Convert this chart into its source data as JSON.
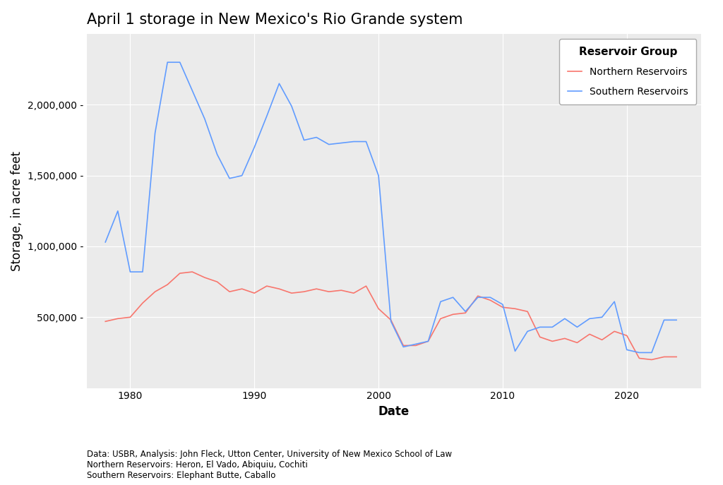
{
  "title": "April 1 storage in New Mexico's Rio Grande system",
  "xlabel": "Date",
  "ylabel": "Storage, in acre feet",
  "caption": "Data: USBR, Analysis: John Fleck, Utton Center, University of New Mexico School of Law\nNorthern Reservoirs: Heron, El Vado, Abiquiu, Cochiti\nSouthern Reservoirs: Elephant Butte, Caballo",
  "legend_title": "Reservoir Group",
  "northern_label": "Northern Reservoirs",
  "southern_label": "Southern Reservoirs",
  "northern_color": "#F8766D",
  "southern_color": "#619CFF",
  "panel_background": "#EBEBEB",
  "plot_background": "#FFFFFF",
  "northern_data": [
    [
      1978,
      470000
    ],
    [
      1979,
      490000
    ],
    [
      1980,
      500000
    ],
    [
      1981,
      600000
    ],
    [
      1982,
      680000
    ],
    [
      1983,
      730000
    ],
    [
      1984,
      810000
    ],
    [
      1985,
      820000
    ],
    [
      1986,
      780000
    ],
    [
      1987,
      750000
    ],
    [
      1988,
      680000
    ],
    [
      1989,
      700000
    ],
    [
      1990,
      670000
    ],
    [
      1991,
      720000
    ],
    [
      1992,
      700000
    ],
    [
      1993,
      670000
    ],
    [
      1994,
      680000
    ],
    [
      1995,
      700000
    ],
    [
      1996,
      680000
    ],
    [
      1997,
      690000
    ],
    [
      1998,
      670000
    ],
    [
      1999,
      720000
    ],
    [
      2000,
      560000
    ],
    [
      2001,
      480000
    ],
    [
      2002,
      300000
    ],
    [
      2003,
      300000
    ],
    [
      2004,
      330000
    ],
    [
      2005,
      490000
    ],
    [
      2006,
      520000
    ],
    [
      2007,
      530000
    ],
    [
      2008,
      650000
    ],
    [
      2009,
      620000
    ],
    [
      2010,
      570000
    ],
    [
      2011,
      560000
    ],
    [
      2012,
      540000
    ],
    [
      2013,
      360000
    ],
    [
      2014,
      330000
    ],
    [
      2015,
      350000
    ],
    [
      2016,
      320000
    ],
    [
      2017,
      380000
    ],
    [
      2018,
      340000
    ],
    [
      2019,
      400000
    ],
    [
      2020,
      370000
    ],
    [
      2021,
      210000
    ],
    [
      2022,
      200000
    ],
    [
      2023,
      220000
    ],
    [
      2024,
      220000
    ]
  ],
  "southern_data": [
    [
      1978,
      1030000
    ],
    [
      1979,
      1250000
    ],
    [
      1980,
      820000
    ],
    [
      1981,
      820000
    ],
    [
      1982,
      1800000
    ],
    [
      1983,
      2300000
    ],
    [
      1984,
      2300000
    ],
    [
      1985,
      2100000
    ],
    [
      1986,
      1900000
    ],
    [
      1987,
      1650000
    ],
    [
      1988,
      1480000
    ],
    [
      1989,
      1500000
    ],
    [
      1990,
      1700000
    ],
    [
      1991,
      1920000
    ],
    [
      1992,
      2150000
    ],
    [
      1993,
      1990000
    ],
    [
      1994,
      1750000
    ],
    [
      1995,
      1770000
    ],
    [
      1996,
      1720000
    ],
    [
      1997,
      1730000
    ],
    [
      1998,
      1740000
    ],
    [
      1999,
      1740000
    ],
    [
      2000,
      1500000
    ],
    [
      2001,
      470000
    ],
    [
      2002,
      290000
    ],
    [
      2003,
      310000
    ],
    [
      2004,
      330000
    ],
    [
      2005,
      610000
    ],
    [
      2006,
      640000
    ],
    [
      2007,
      540000
    ],
    [
      2008,
      640000
    ],
    [
      2009,
      640000
    ],
    [
      2010,
      590000
    ],
    [
      2011,
      260000
    ],
    [
      2012,
      400000
    ],
    [
      2013,
      430000
    ],
    [
      2014,
      430000
    ],
    [
      2015,
      490000
    ],
    [
      2016,
      430000
    ],
    [
      2017,
      490000
    ],
    [
      2018,
      500000
    ],
    [
      2019,
      610000
    ],
    [
      2020,
      270000
    ],
    [
      2021,
      250000
    ],
    [
      2022,
      250000
    ],
    [
      2023,
      480000
    ],
    [
      2024,
      480000
    ]
  ],
  "ylim": [
    0,
    2500000
  ],
  "yticks": [
    500000,
    1000000,
    1500000,
    2000000
  ],
  "xlim": [
    1976.5,
    2026
  ],
  "xticks": [
    1980,
    1990,
    2000,
    2010,
    2020
  ],
  "title_fontsize": 15,
  "axis_label_fontsize": 12,
  "tick_fontsize": 10,
  "caption_fontsize": 8.5,
  "legend_fontsize": 10,
  "line_width": 1.2
}
